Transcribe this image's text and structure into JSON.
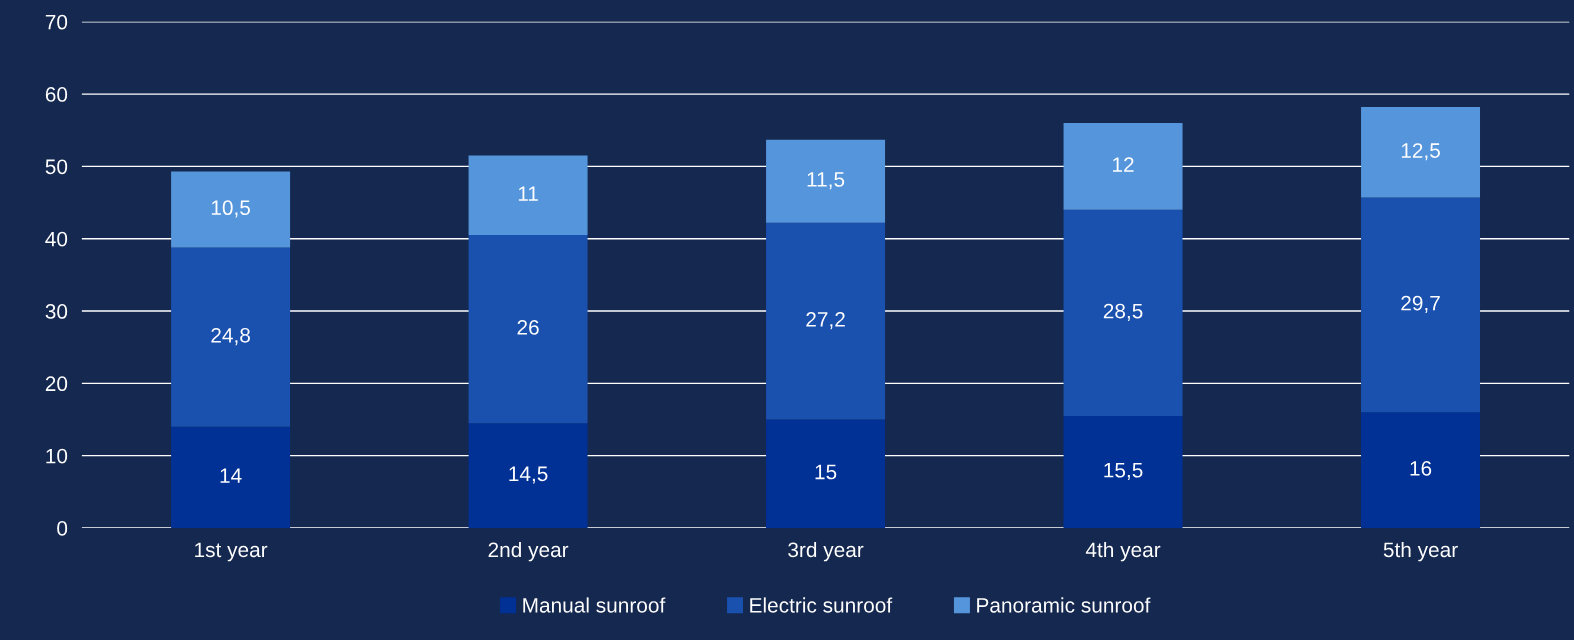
{
  "chart_data": {
    "type": "bar",
    "stacked": true,
    "categories": [
      "1st year",
      "2nd year",
      "3rd year",
      "4th year",
      "5th year"
    ],
    "series": [
      {
        "name": "Manual sunroof",
        "color": "#023196",
        "values": [
          14,
          14.5,
          15,
          15.5,
          16
        ],
        "value_labels": [
          "14",
          "14,5",
          "15",
          "15,5",
          "16"
        ]
      },
      {
        "name": "Electric sunroof",
        "color": "#1a50ae",
        "values": [
          24.8,
          26,
          27.2,
          28.5,
          29.7
        ],
        "value_labels": [
          "24,8",
          "26",
          "27,2",
          "28,5",
          "29,7"
        ]
      },
      {
        "name": "Panoramic sunroof",
        "color": "#5595db",
        "values": [
          10.5,
          11,
          11.5,
          12,
          12.5
        ],
        "value_labels": [
          "10,5",
          "11",
          "11,5",
          "12",
          "12,5"
        ]
      }
    ],
    "ylim": [
      0,
      70
    ],
    "yticks": [
      0,
      10,
      20,
      30,
      40,
      50,
      60,
      70
    ],
    "grid": "y",
    "legend": "bottom"
  }
}
